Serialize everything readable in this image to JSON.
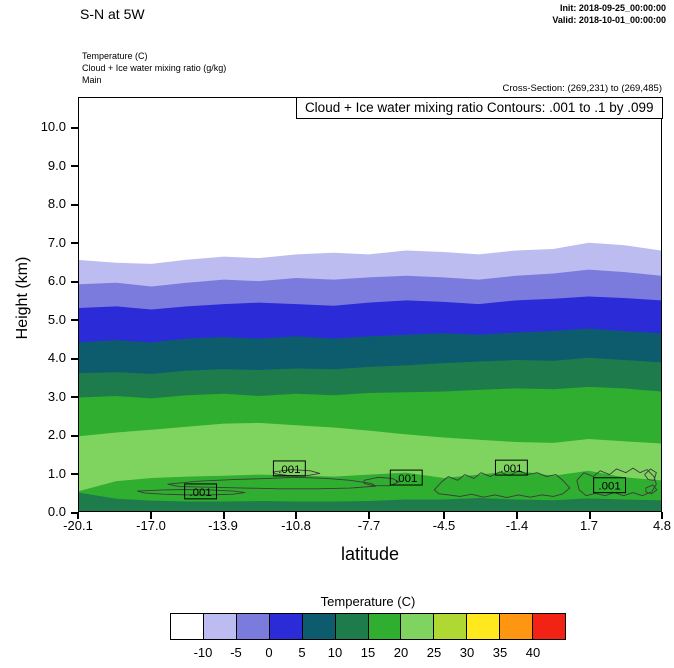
{
  "header": {
    "title": "S-N at 5W",
    "init": "Init: 2018-09-25_00:00:00",
    "valid": "Valid: 2018-10-01_00:00:00"
  },
  "legend_lines": {
    "line1": "Temperature   (C)",
    "line2": "Cloud + Ice water mixing ratio   (g/kg)",
    "line3": "Main"
  },
  "cross_section": "Cross-Section: (269,231) to (269,485)",
  "plot": {
    "contour_note": "Cloud + Ice water mixing ratio Contours: .001 to .1 by .099",
    "ylabel": "Height (km)",
    "xlabel": "latitude"
  },
  "colorbar": {
    "title": "Temperature  (C)",
    "colors": [
      "#ffffff",
      "#bcbcf0",
      "#7b7bde",
      "#2b2bd8",
      "#0d5c6e",
      "#1e7c4c",
      "#2fae2f",
      "#7ed45e",
      "#b0d832",
      "#ffe81e",
      "#ff9612",
      "#f22314"
    ],
    "tick_labels": [
      "-10",
      "-5",
      "0",
      "5",
      "10",
      "15",
      "20",
      "25",
      "30",
      "35",
      "40"
    ]
  },
  "chart_data": {
    "type": "heatmap",
    "title": "Cloud + Ice water mixing ratio Contours: .001 to .1 by .099",
    "xlabel": "latitude",
    "ylabel": "Height (km)",
    "xlim": [
      -20.1,
      4.8
    ],
    "ylim": [
      0,
      10.78
    ],
    "x_ticks": [
      -20.1,
      -17.0,
      -13.9,
      -10.8,
      -7.7,
      -4.5,
      -1.4,
      1.7,
      4.8
    ],
    "x_tick_labels": [
      "-20.1",
      "-17.0",
      "-13.9",
      "-10.8",
      "-7.7",
      "-4.5",
      "-1.4",
      "1.7",
      "4.8"
    ],
    "y_ticks": [
      0,
      1,
      2,
      3,
      4,
      5,
      6,
      7,
      8,
      9,
      10
    ],
    "y_tick_labels": [
      "0.0",
      "1.0",
      "2.0",
      "3.0",
      "4.0",
      "5.0",
      "6.0",
      "7.0",
      "8.0",
      "9.0",
      "10.0"
    ],
    "background_fill": "#ffffff",
    "lats": [
      -20.1,
      -18.5,
      -17.0,
      -15.5,
      -13.9,
      -12.4,
      -10.8,
      -9.2,
      -7.7,
      -6.1,
      -4.5,
      -3.0,
      -1.4,
      0.2,
      1.7,
      3.2,
      4.8
    ],
    "fill_layers": [
      {
        "name": "below-minus10C",
        "level_c": -10,
        "fill": "#bcbcf0",
        "heights_km": [
          6.55,
          6.48,
          6.45,
          6.56,
          6.64,
          6.6,
          6.7,
          6.74,
          6.7,
          6.8,
          6.76,
          6.7,
          6.8,
          6.84,
          7.0,
          6.94,
          6.8
        ]
      },
      {
        "name": "below-minus5C",
        "level_c": -5,
        "fill": "#7b7bde",
        "heights_km": [
          5.92,
          5.96,
          5.86,
          5.96,
          6.04,
          6.0,
          6.08,
          6.04,
          6.1,
          6.14,
          6.1,
          6.04,
          6.14,
          6.2,
          6.3,
          6.24,
          6.14
        ]
      },
      {
        "name": "below-0C",
        "level_c": 0,
        "fill": "#2b2bd8",
        "heights_km": [
          5.3,
          5.34,
          5.26,
          5.34,
          5.4,
          5.44,
          5.4,
          5.36,
          5.44,
          5.5,
          5.46,
          5.4,
          5.5,
          5.54,
          5.6,
          5.56,
          5.5
        ]
      },
      {
        "name": "below-5C",
        "level_c": 5,
        "fill": "#0d5c6e",
        "heights_km": [
          4.4,
          4.46,
          4.4,
          4.5,
          4.54,
          4.5,
          4.56,
          4.5,
          4.56,
          4.6,
          4.64,
          4.6,
          4.66,
          4.7,
          4.76,
          4.7,
          4.64
        ]
      },
      {
        "name": "below-10C",
        "level_c": 10,
        "fill": "#1e7c4c",
        "heights_km": [
          3.6,
          3.62,
          3.58,
          3.66,
          3.7,
          3.68,
          3.72,
          3.7,
          3.76,
          3.8,
          3.86,
          3.9,
          3.94,
          3.92,
          4.0,
          3.94,
          3.88
        ]
      },
      {
        "name": "below-15C",
        "level_c": 15,
        "fill": "#2fae2f",
        "heights_km": [
          2.96,
          3.0,
          2.94,
          3.02,
          3.06,
          3.0,
          3.06,
          3.02,
          3.08,
          3.1,
          3.12,
          3.16,
          3.2,
          3.18,
          3.24,
          3.2,
          3.12
        ]
      },
      {
        "name": "below-20C",
        "level_c": 20,
        "fill": "#7ed45e",
        "heights_km": [
          1.95,
          2.05,
          2.12,
          2.2,
          2.28,
          2.3,
          2.24,
          2.18,
          2.1,
          2.0,
          1.92,
          1.86,
          1.8,
          1.78,
          1.88,
          1.82,
          1.76
        ]
      },
      {
        "name": "inversion-base-20C",
        "level_c": 20,
        "fill": "#2fae2f",
        "heights_km": [
          0.52,
          0.78,
          0.86,
          0.9,
          0.92,
          0.95,
          0.93,
          0.9,
          0.95,
          1.0,
          0.86,
          0.95,
          1.05,
          0.92,
          1.05,
          0.88,
          0.8
        ]
      },
      {
        "name": "surface-layer-15C",
        "level_c": 15,
        "fill": "#1e7c4c",
        "heights_km": [
          0.48,
          0.32,
          0.27,
          0.25,
          0.25,
          0.26,
          0.25,
          0.25,
          0.26,
          0.3,
          0.3,
          0.34,
          0.3,
          0.28,
          0.33,
          0.3,
          0.28
        ]
      }
    ],
    "cloud_contour_interval": ".001 to .1 by .099",
    "cloud_contour_color": "#3c3c3c",
    "cloud_contours": [
      {
        "points": [
          [
            -17.6,
            0.52
          ],
          [
            -16.5,
            0.55
          ],
          [
            -15.5,
            0.56
          ],
          [
            -14.5,
            0.55
          ],
          [
            -13.5,
            0.52
          ],
          [
            -13.0,
            0.48
          ],
          [
            -13.5,
            0.44
          ],
          [
            -14.5,
            0.42
          ],
          [
            -15.5,
            0.42
          ],
          [
            -16.5,
            0.44
          ],
          [
            -17.3,
            0.47
          ]
        ]
      },
      {
        "points": [
          [
            -16.3,
            0.7
          ],
          [
            -15.0,
            0.78
          ],
          [
            -13.5,
            0.82
          ],
          [
            -12.0,
            0.85
          ],
          [
            -10.8,
            0.88
          ],
          [
            -9.5,
            0.85
          ],
          [
            -8.5,
            0.8
          ],
          [
            -7.6,
            0.72
          ],
          [
            -7.4,
            0.65
          ],
          [
            -8.5,
            0.6
          ],
          [
            -10.0,
            0.58
          ],
          [
            -11.5,
            0.58
          ],
          [
            -13.0,
            0.6
          ],
          [
            -14.5,
            0.62
          ],
          [
            -15.8,
            0.64
          ]
        ]
      },
      {
        "points": [
          [
            -11.8,
            1.02
          ],
          [
            -11.0,
            1.08
          ],
          [
            -10.2,
            1.05
          ],
          [
            -9.8,
            0.98
          ],
          [
            -10.4,
            0.92
          ],
          [
            -11.2,
            0.93
          ],
          [
            -11.7,
            0.97
          ]
        ]
      },
      {
        "points": [
          [
            -7.9,
            0.8
          ],
          [
            -7.3,
            0.88
          ],
          [
            -6.7,
            0.85
          ],
          [
            -6.4,
            0.76
          ],
          [
            -6.8,
            0.66
          ],
          [
            -7.5,
            0.66
          ],
          [
            -7.9,
            0.72
          ]
        ]
      },
      {
        "points": [
          [
            -4.9,
            0.55
          ],
          [
            -4.6,
            0.75
          ],
          [
            -4.3,
            0.9
          ],
          [
            -3.9,
            0.8
          ],
          [
            -3.6,
            0.95
          ],
          [
            -3.2,
            0.85
          ],
          [
            -2.9,
            1.0
          ],
          [
            -2.5,
            0.9
          ],
          [
            -2.1,
            1.02
          ],
          [
            -1.7,
            0.92
          ],
          [
            -1.3,
            1.05
          ],
          [
            -0.9,
            0.95
          ],
          [
            -0.5,
            1.0
          ],
          [
            -0.1,
            0.9
          ],
          [
            0.3,
            0.95
          ],
          [
            0.6,
            0.8
          ],
          [
            0.9,
            0.6
          ],
          [
            0.6,
            0.45
          ],
          [
            0.2,
            0.38
          ],
          [
            -0.3,
            0.42
          ],
          [
            -0.8,
            0.36
          ],
          [
            -1.3,
            0.42
          ],
          [
            -1.8,
            0.35
          ],
          [
            -2.3,
            0.42
          ],
          [
            -2.8,
            0.36
          ],
          [
            -3.3,
            0.44
          ],
          [
            -3.8,
            0.38
          ],
          [
            -4.3,
            0.42
          ],
          [
            -4.7,
            0.45
          ]
        ]
      },
      {
        "points": [
          [
            1.2,
            0.8
          ],
          [
            1.5,
            1.0
          ],
          [
            1.9,
            0.9
          ],
          [
            2.2,
            1.05
          ],
          [
            2.6,
            0.95
          ],
          [
            2.9,
            1.1
          ],
          [
            3.3,
            1.0
          ],
          [
            3.6,
            1.12
          ],
          [
            3.9,
            1.0
          ],
          [
            4.2,
            1.08
          ],
          [
            4.5,
            0.9
          ],
          [
            4.6,
            0.7
          ],
          [
            4.4,
            0.5
          ],
          [
            4.0,
            0.4
          ],
          [
            3.6,
            0.48
          ],
          [
            3.2,
            0.4
          ],
          [
            2.8,
            0.48
          ],
          [
            2.4,
            0.4
          ],
          [
            2.0,
            0.46
          ],
          [
            1.6,
            0.4
          ],
          [
            1.3,
            0.55
          ]
        ]
      },
      {
        "points": [
          [
            4.1,
            0.95
          ],
          [
            4.35,
            1.1
          ],
          [
            4.6,
            1.0
          ],
          [
            4.5,
            0.8
          ],
          [
            4.25,
            0.82
          ]
        ]
      },
      {
        "points": [
          [
            4.15,
            0.6
          ],
          [
            4.45,
            0.68
          ],
          [
            4.62,
            0.55
          ],
          [
            4.4,
            0.45
          ],
          [
            4.15,
            0.5
          ]
        ]
      }
    ],
    "cloud_labels": [
      {
        "lat": -14.9,
        "h": 0.5,
        "text": ".001"
      },
      {
        "lat": -11.1,
        "h": 1.1,
        "text": ".001"
      },
      {
        "lat": -6.1,
        "h": 0.86,
        "text": ".001"
      },
      {
        "lat": -1.6,
        "h": 1.12,
        "text": ".001"
      },
      {
        "lat": 2.6,
        "h": 0.66,
        "text": ".001"
      }
    ]
  }
}
